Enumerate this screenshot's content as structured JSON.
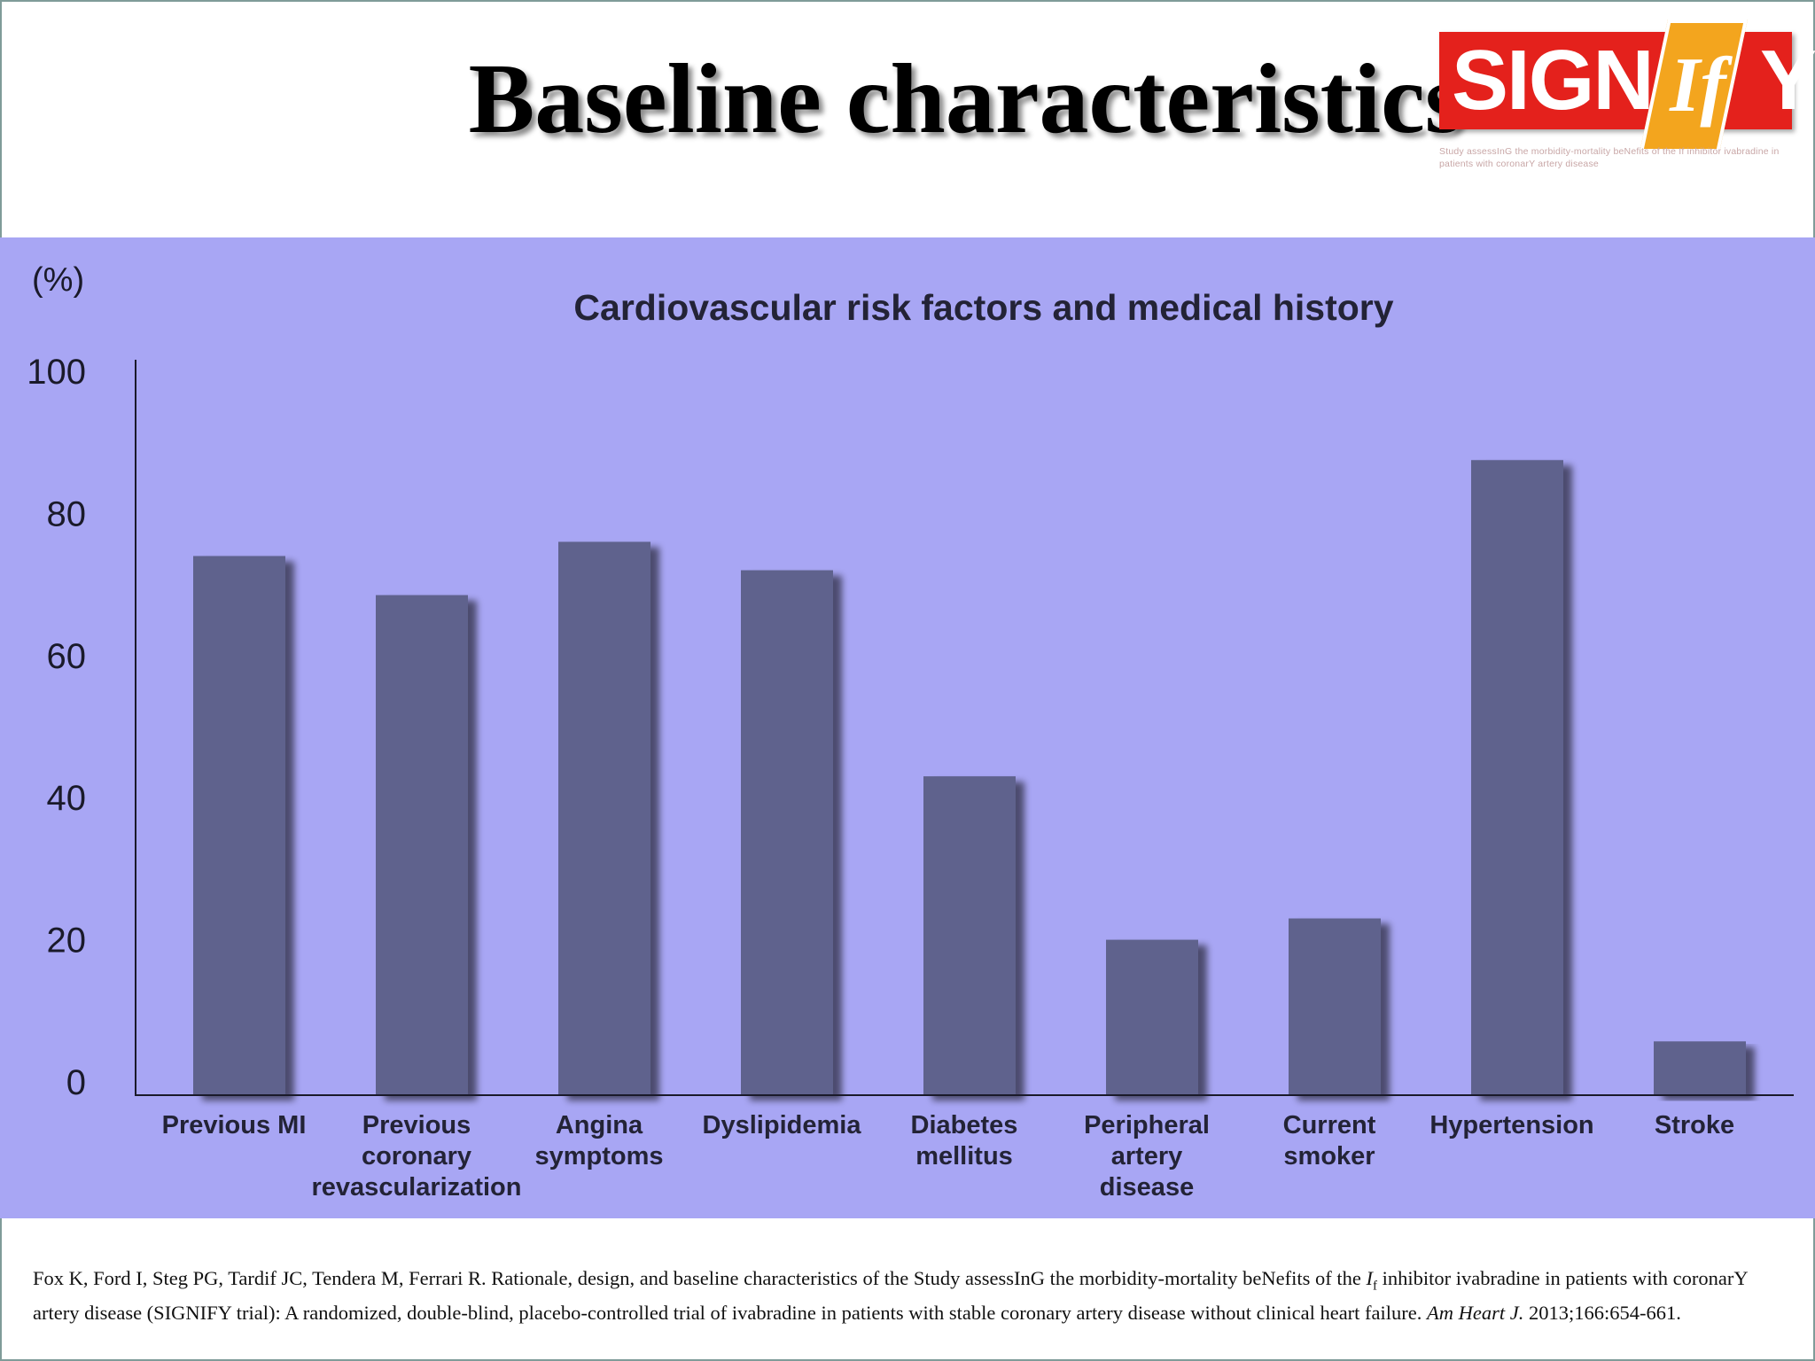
{
  "slide": {
    "title": "Baseline characteristics"
  },
  "logo": {
    "word_left": "SIGN",
    "word_if": "If",
    "word_right": "Y",
    "subtitle": "Study assessInG the morbidity-mortality beNefits of the If inhibitor ivabradine in patients with coronarY artery disease",
    "colors": {
      "box": "#e4211c",
      "accent": "#f3a51e"
    }
  },
  "colors": {
    "panel": "#a8a6f4",
    "bar": "#5f628d",
    "axis": "#1a1a2a"
  },
  "chart_data": {
    "type": "bar",
    "title": "Cardiovascular risk factors and medical history",
    "ylabel": "(%)",
    "ylim": [
      0,
      100
    ],
    "yticks": [
      0,
      20,
      40,
      60,
      80,
      100
    ],
    "categories": [
      [
        "Previous MI"
      ],
      [
        "Previous",
        "coronary",
        "revascularization"
      ],
      [
        "Angina",
        "symptoms"
      ],
      [
        "Dyslipidemia"
      ],
      [
        "Diabetes",
        "mellitus"
      ],
      [
        "Peripheral",
        "artery",
        "disease"
      ],
      [
        "Current",
        "smoker"
      ],
      [
        "Hypertension"
      ],
      [
        "Stroke"
      ]
    ],
    "values": [
      74,
      68.5,
      76,
      72,
      43,
      20,
      23,
      87.5,
      5.7
    ],
    "grid": false,
    "legend": "none"
  },
  "reference": {
    "text_1": "Fox K, Ford I, Steg PG, Tardif JC, Tendera M, Ferrari R. Rationale, design, and baseline characteristics of the Study assessInG the morbidity-mortality beNefits of the ",
    "i_symbol": "I",
    "i_sub": "f",
    "text_2": " inhibitor ivabradine in patients with coronarY artery disease (SIGNIFY trial): A randomized, double-blind, placebo-controlled trial of ivabradine in patients with stable coronary artery disease without clinical heart failure. ",
    "journal": "Am Heart J.",
    "text_3": " 2013;166:654-661."
  }
}
